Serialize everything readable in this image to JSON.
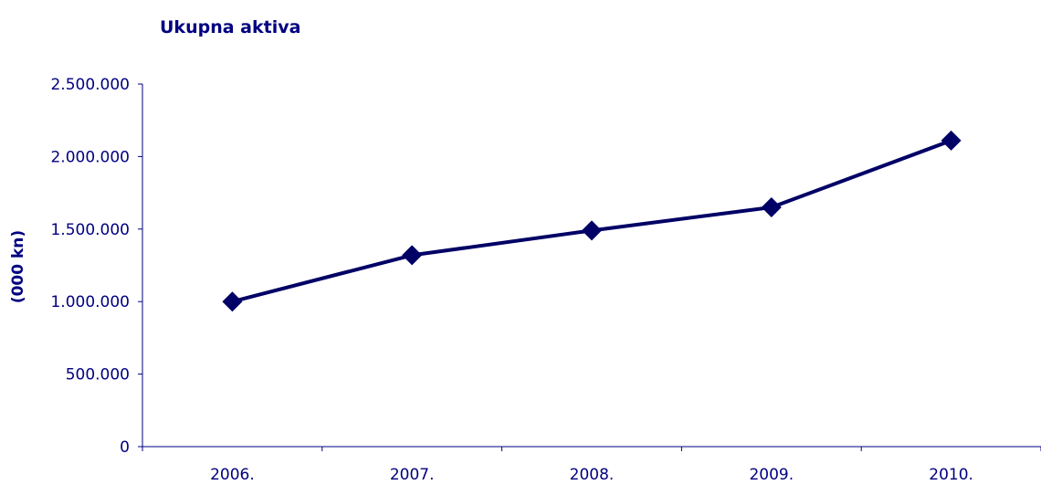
{
  "chart_data": {
    "type": "line",
    "title": "Ukupna aktiva",
    "xlabel": "",
    "ylabel": "(000 kn)",
    "categories": [
      "2006.",
      "2007.",
      "2008.",
      "2009.",
      "2010."
    ],
    "series": [
      {
        "values": [
          1000000,
          1320000,
          1490000,
          1650000,
          2110000
        ]
      }
    ],
    "ylim": [
      0,
      2500000
    ],
    "yticks": [
      0,
      500000,
      1000000,
      1500000,
      2000000,
      2500000
    ],
    "ytick_labels": [
      "0",
      "500.000",
      "1.000.000",
      "1.500.000",
      "2.000.000",
      "2.500.000"
    ],
    "grid": false,
    "legend": "none",
    "marker": "diamond",
    "colors": {
      "series": "#000066",
      "text": "#000080",
      "axis": "#000080"
    }
  }
}
